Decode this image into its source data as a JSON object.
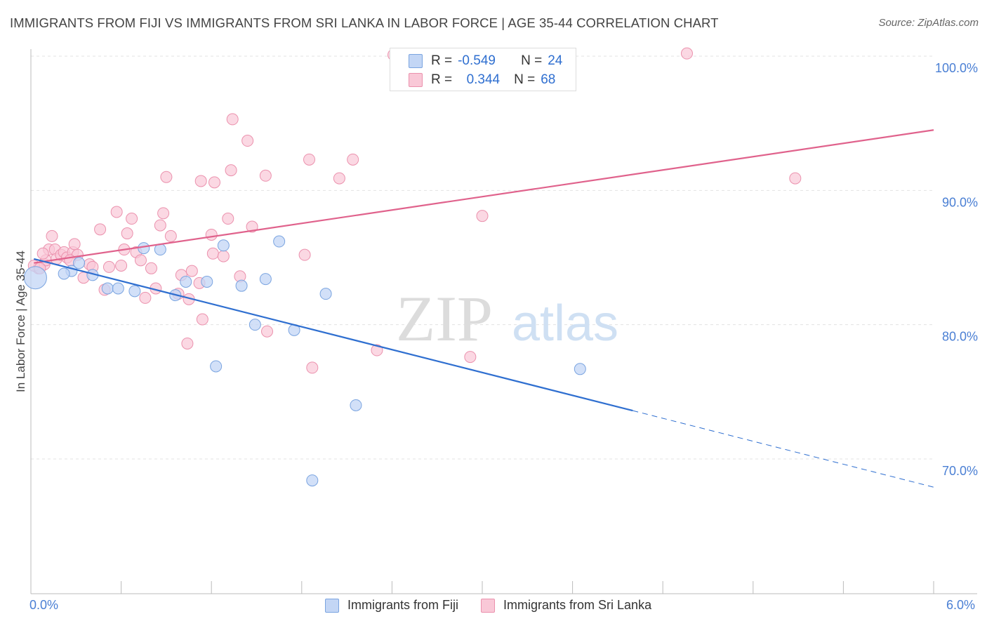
{
  "title": "IMMIGRANTS FROM FIJI VS IMMIGRANTS FROM SRI LANKA IN LABOR FORCE | AGE 35-44 CORRELATION CHART",
  "source": "Source: ZipAtlas.com",
  "watermark": {
    "zip": "ZIP",
    "atlas": "atlas"
  },
  "colors": {
    "fiji_fill": "#c3d6f5",
    "fiji_stroke": "#7aa4e0",
    "fiji_line": "#2f6fd0",
    "lanka_fill": "#f9c8d7",
    "lanka_stroke": "#eb91ad",
    "lanka_line": "#e0628c",
    "tick_text": "#4a7fd4"
  },
  "stats": {
    "rows": [
      {
        "r_label": "R =",
        "r_value": "-0.549",
        "n_label": "N =",
        "n_value": "24"
      },
      {
        "r_label": "R =",
        "r_value": "0.344",
        "n_label": "N =",
        "n_value": "68"
      }
    ]
  },
  "chart_data": {
    "type": "scatter",
    "title": "IMMIGRANTS FROM FIJI VS IMMIGRANTS FROM SRI LANKA IN LABOR FORCE | AGE 35-44 CORRELATION CHART",
    "xlabel": "",
    "ylabel": "In Labor Force | Age 35-44",
    "xlim": [
      0,
      6
    ],
    "ylim": [
      60,
      101
    ],
    "x_tick_labels": [
      "0.0%",
      "6.0%"
    ],
    "y_ticks": [
      70,
      80,
      90,
      100
    ],
    "y_tick_labels": [
      "70.0%",
      "80.0%",
      "90.0%",
      "100.0%"
    ],
    "grid": true,
    "legend_position": "bottom",
    "series": [
      {
        "name": "Immigrants from Fiji",
        "r": -0.549,
        "n": 24,
        "points": [
          [
            0.03,
            83.5
          ],
          [
            0.27,
            84
          ],
          [
            0.22,
            83.8
          ],
          [
            0.32,
            84.6
          ],
          [
            0.41,
            83.7
          ],
          [
            0.51,
            82.7
          ],
          [
            0.58,
            82.7
          ],
          [
            0.69,
            82.5
          ],
          [
            0.75,
            85.7
          ],
          [
            0.86,
            85.6
          ],
          [
            0.96,
            82.2
          ],
          [
            1.03,
            83.2
          ],
          [
            1.17,
            83.2
          ],
          [
            1.23,
            76.9
          ],
          [
            1.28,
            85.9
          ],
          [
            1.4,
            82.9
          ],
          [
            1.49,
            80
          ],
          [
            1.56,
            83.4
          ],
          [
            1.65,
            86.2
          ],
          [
            1.75,
            79.6
          ],
          [
            1.87,
            68.4
          ],
          [
            1.96,
            82.3
          ],
          [
            2.16,
            74
          ],
          [
            3.65,
            76.7
          ]
        ],
        "trend": {
          "x": [
            0.02,
            4.0
          ],
          "y": [
            84.9,
            73.6
          ]
        },
        "trend_dashed": {
          "x": [
            4.0,
            6.0
          ],
          "y": [
            73.6,
            67.9
          ]
        }
      },
      {
        "name": "Immigrants from Sri Lanka",
        "r": 0.344,
        "n": 68,
        "points": [
          [
            0.05,
            84.2
          ],
          [
            0.09,
            84.5
          ],
          [
            0.1,
            84.8
          ],
          [
            0.12,
            85.6
          ],
          [
            0.14,
            86.6
          ],
          [
            0.16,
            85.6
          ],
          [
            0.17,
            84.9
          ],
          [
            0.2,
            85.2
          ],
          [
            0.22,
            85.4
          ],
          [
            0.24,
            85
          ],
          [
            0.28,
            85.4
          ],
          [
            0.29,
            86
          ],
          [
            0.31,
            85.2
          ],
          [
            0.35,
            83.5
          ],
          [
            0.39,
            84.5
          ],
          [
            0.41,
            84.3
          ],
          [
            0.46,
            87.1
          ],
          [
            0.49,
            82.6
          ],
          [
            0.52,
            84.3
          ],
          [
            0.57,
            88.4
          ],
          [
            0.6,
            84.4
          ],
          [
            0.62,
            85.6
          ],
          [
            0.64,
            86.8
          ],
          [
            0.67,
            87.9
          ],
          [
            0.7,
            85.4
          ],
          [
            0.73,
            84.8
          ],
          [
            0.76,
            82
          ],
          [
            0.8,
            84.2
          ],
          [
            0.83,
            82.7
          ],
          [
            0.86,
            87.4
          ],
          [
            0.88,
            88.3
          ],
          [
            0.9,
            91
          ],
          [
            0.93,
            86.6
          ],
          [
            0.98,
            82.3
          ],
          [
            1.0,
            83.7
          ],
          [
            1.04,
            78.6
          ],
          [
            1.05,
            81.9
          ],
          [
            1.07,
            84
          ],
          [
            1.12,
            83.1
          ],
          [
            1.13,
            90.7
          ],
          [
            1.14,
            80.4
          ],
          [
            1.2,
            86.7
          ],
          [
            1.21,
            85.3
          ],
          [
            1.22,
            90.6
          ],
          [
            1.28,
            85.1
          ],
          [
            1.31,
            87.9
          ],
          [
            1.33,
            91.5
          ],
          [
            1.34,
            95.3
          ],
          [
            1.39,
            83.6
          ],
          [
            1.44,
            93.7
          ],
          [
            1.47,
            87.3
          ],
          [
            1.56,
            91.1
          ],
          [
            1.57,
            79.5
          ],
          [
            1.82,
            85.2
          ],
          [
            1.85,
            92.3
          ],
          [
            1.87,
            76.8
          ],
          [
            2.05,
            90.9
          ],
          [
            2.14,
            92.3
          ],
          [
            2.3,
            78.1
          ],
          [
            2.41,
            100.1
          ],
          [
            2.92,
            77.6
          ],
          [
            3.0,
            88.1
          ],
          [
            4.36,
            100.2
          ],
          [
            5.08,
            90.9
          ],
          [
            0.02,
            84.4
          ],
          [
            0.06,
            84.2
          ],
          [
            0.26,
            84.8
          ],
          [
            0.08,
            85.3
          ]
        ],
        "trend": {
          "x": [
            0.02,
            6.0
          ],
          "y": [
            84.6,
            94.5
          ]
        }
      }
    ]
  }
}
